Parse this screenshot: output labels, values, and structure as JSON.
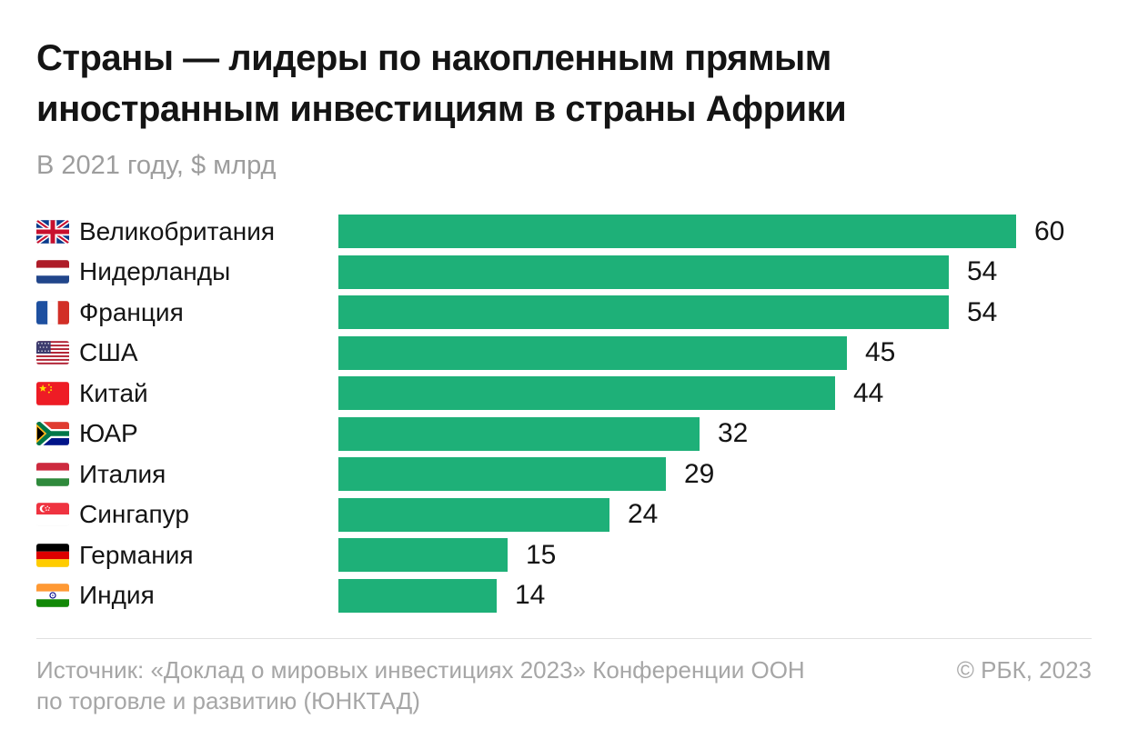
{
  "title_lines": [
    "Страны — лидеры по накопленным прямым",
    "иностранным инвестициям в страны Африки"
  ],
  "subtitle": "В 2021 году, $ млрд",
  "chart_data": {
    "type": "bar",
    "orientation": "horizontal",
    "title": "Страны — лидеры по накопленным прямым иностранным инвестициям в страны Африки",
    "subtitle": "В 2021 году, $ млрд",
    "unit": "$ млрд",
    "year": "2021",
    "xlim": [
      0,
      60
    ],
    "grid": false,
    "legend": false,
    "value_labels": "outside-end",
    "categories": [
      "Великобритания",
      "Нидерланды",
      "Франция",
      "США",
      "Китай",
      "ЮАР",
      "Италия",
      "Сингапур",
      "Германия",
      "Индия"
    ],
    "values": [
      60,
      54,
      54,
      45,
      44,
      32,
      29,
      24,
      15,
      14
    ],
    "flag_icons": [
      "flag-united-kingdom",
      "flag-netherlands",
      "flag-france",
      "flag-usa",
      "flag-china",
      "flag-south-africa",
      "flag-hungary-tricolor",
      "flag-singapore",
      "flag-germany",
      "flag-india"
    ],
    "bar_color": "#1EB078"
  },
  "footer": {
    "source_line1": "Источник: «Доклад о мировых инвестициях 2023» Конференции ООН",
    "source_line2": "по торговле и развитию (ЮНКТАД)",
    "copyright": "© РБК, 2023"
  },
  "colors": {
    "bar": "#1EB078",
    "title_text": "#141414",
    "subtitle_text": "#9D9D9D",
    "footer_text": "#A6A6A6",
    "divider": "#E0E0E0",
    "background": "#FFFFFF"
  }
}
